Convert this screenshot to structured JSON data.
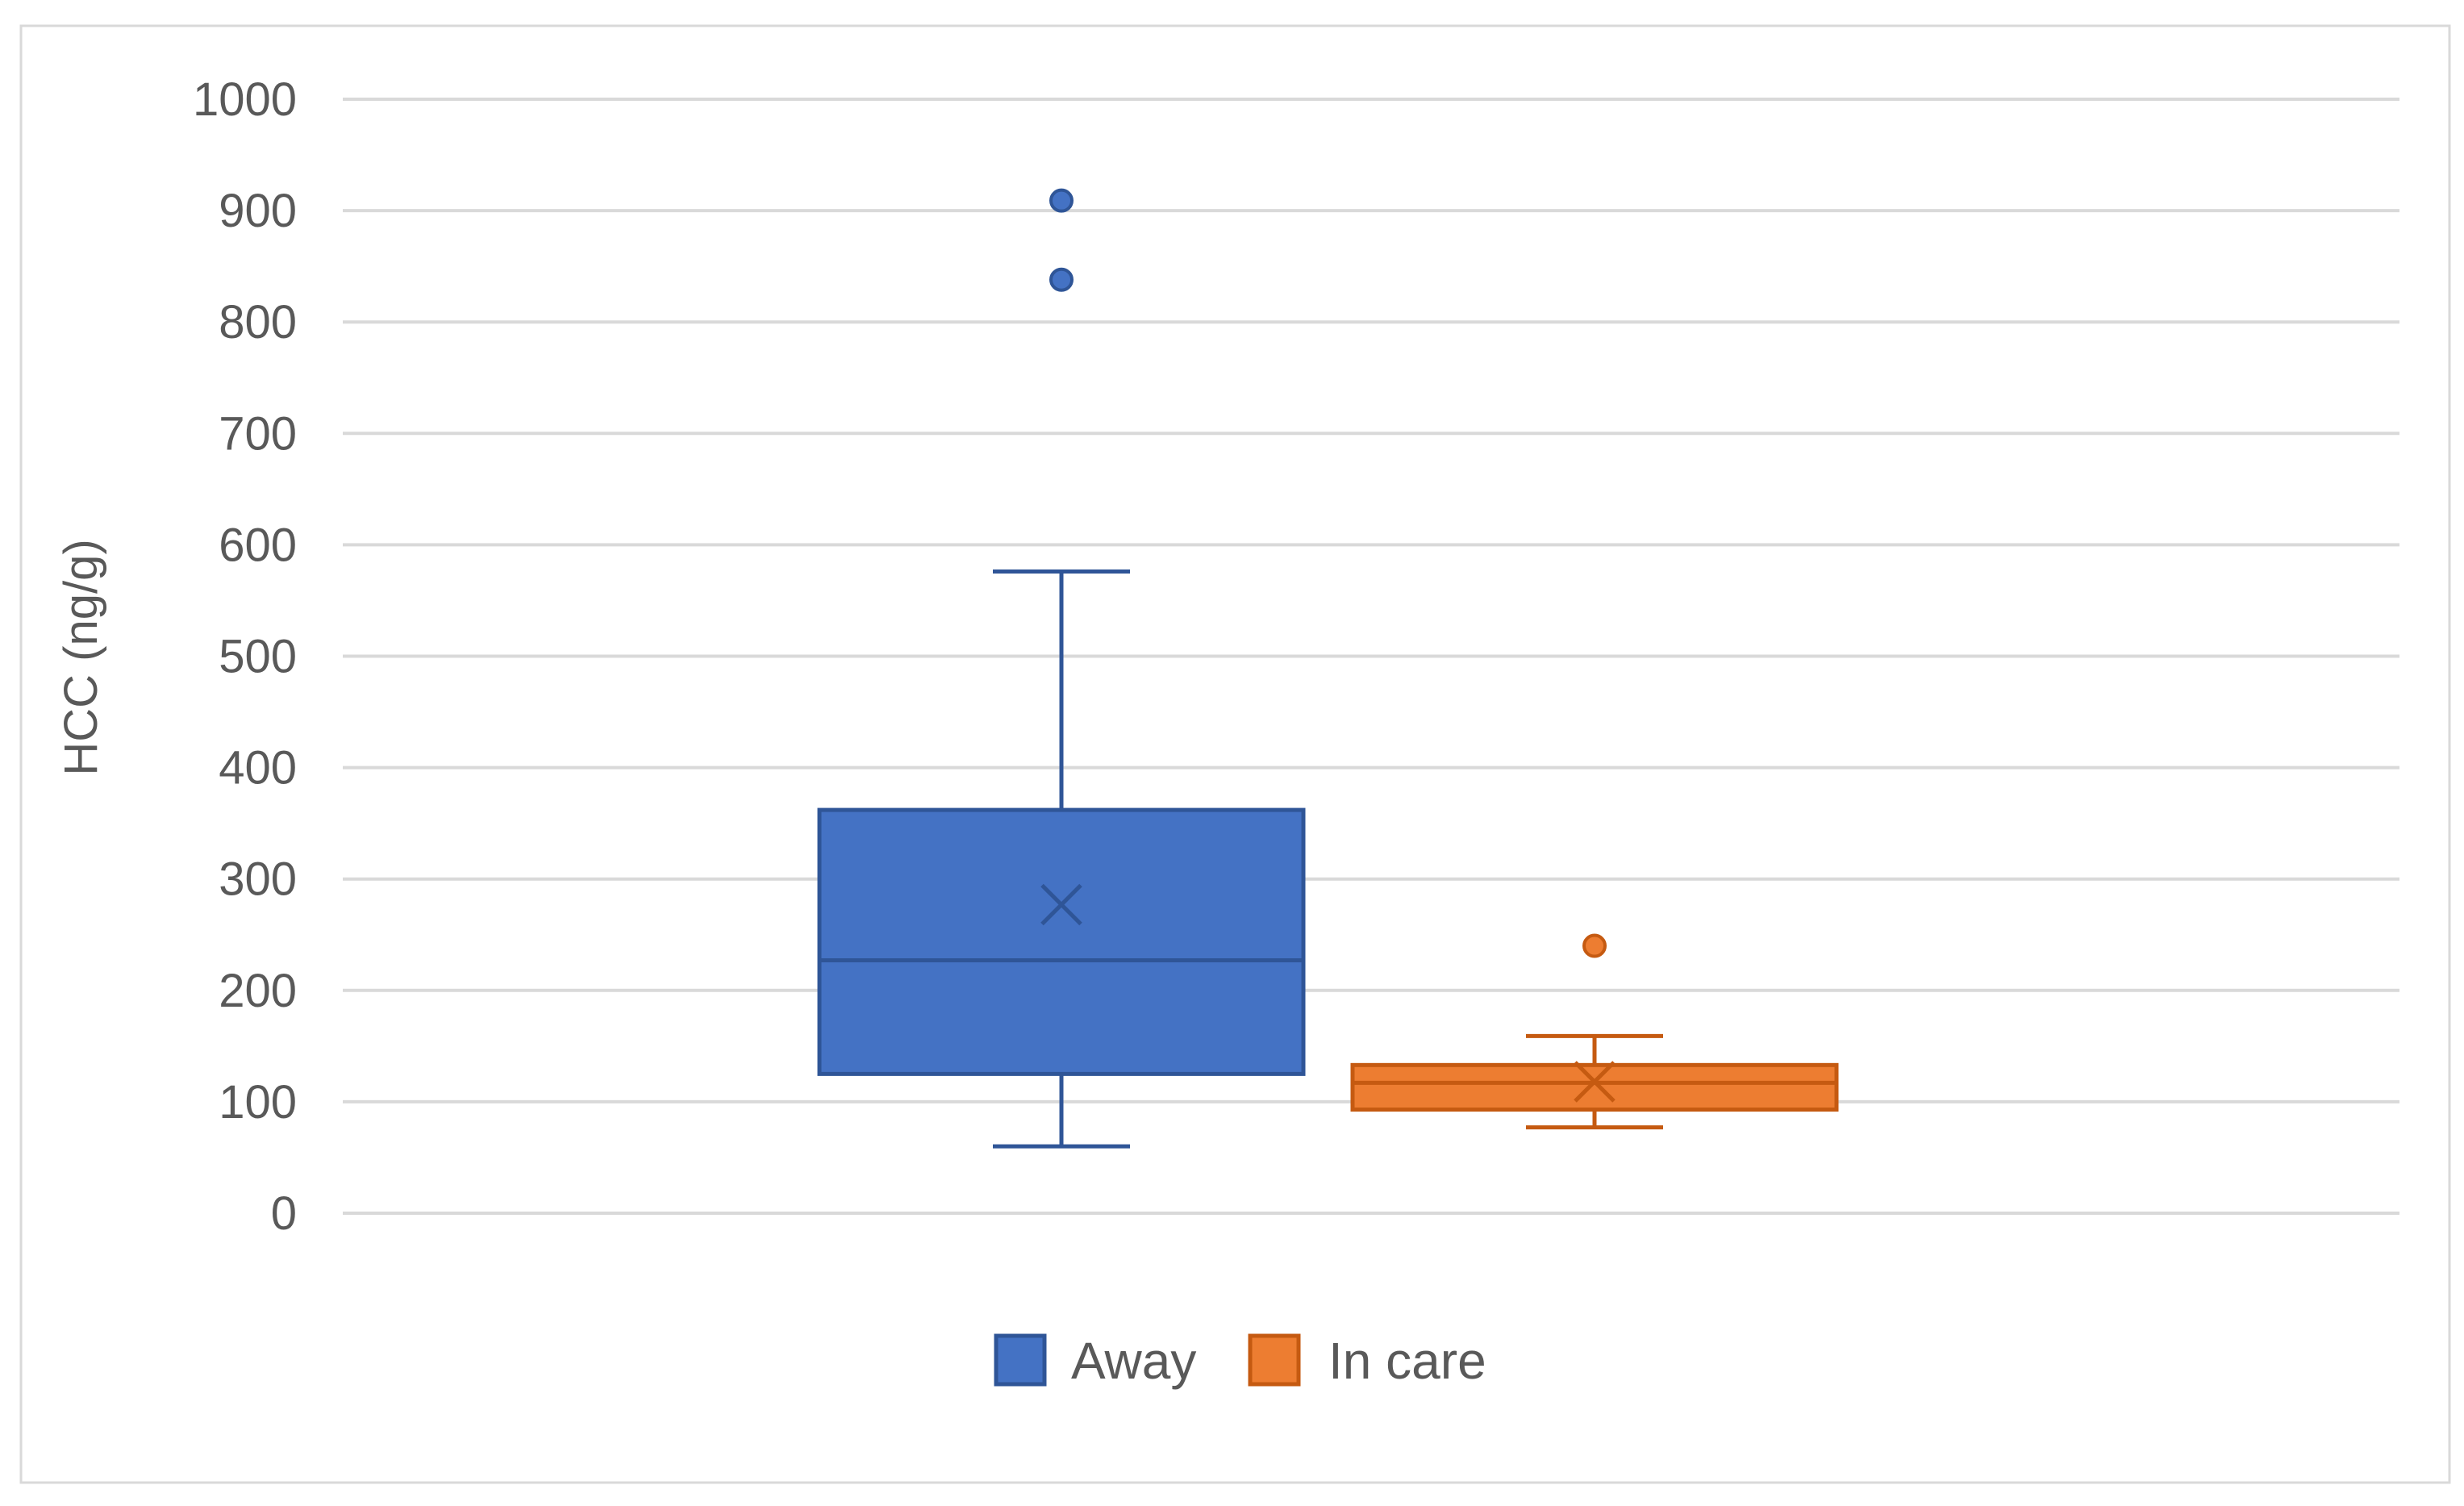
{
  "chart_data": {
    "type": "box",
    "ylabel": "HCC (ng/g)",
    "ylim": [
      0,
      1000
    ],
    "yticks": [
      0,
      100,
      200,
      300,
      400,
      500,
      600,
      700,
      800,
      900,
      1000
    ],
    "grid": true,
    "legend_position": "bottom",
    "series": [
      {
        "name": "Away",
        "color": "#4472C4",
        "stroke": "#2F5597",
        "whisker_low": 60,
        "q1": 125,
        "median": 227,
        "q3": 362,
        "whisker_high": 576,
        "mean": 277,
        "outliers": [
          909,
          838
        ]
      },
      {
        "name": "In care",
        "color": "#ED7D31",
        "stroke": "#C55A11",
        "whisker_low": 77,
        "q1": 93,
        "median": 117,
        "q3": 133,
        "whisker_high": 159,
        "mean": 118,
        "outliers": [
          240
        ]
      }
    ]
  },
  "colors": {
    "grid": "#D9D9D9",
    "frame": "#D9D9D9",
    "text": "#595959"
  }
}
